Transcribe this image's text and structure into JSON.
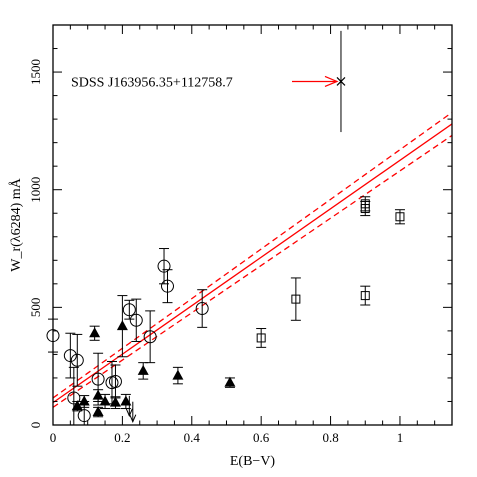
{
  "chart_data": {
    "type": "scatter",
    "xlabel": "E(B−V)",
    "ylabel": "W_r(λ6284) mÅ",
    "xlim": [
      0,
      1.15
    ],
    "ylim": [
      0,
      1700
    ],
    "x_ticks": [
      "0",
      "0.2",
      "0.4",
      "0.6",
      "0.8",
      "1"
    ],
    "x_tick_values": [
      0,
      0.2,
      0.4,
      0.6,
      0.8,
      1.0
    ],
    "y_ticks": [
      "0",
      "500",
      "1000",
      "1500"
    ],
    "y_tick_values": [
      0,
      500,
      1000,
      1500
    ],
    "grid": false,
    "line_color": "#ff0000",
    "marker_color": "#000000",
    "fit": {
      "intercept": 95,
      "slope": 1030,
      "band": [
        {
          "name": "upper",
          "intercept": 115,
          "slope": 1055,
          "style": "dashed"
        },
        {
          "name": "lower",
          "intercept": 75,
          "slope": 1005,
          "style": "dashed"
        }
      ]
    },
    "series": [
      {
        "marker": "circle",
        "points": [
          {
            "x": 0.0,
            "y": 380,
            "err": 70
          },
          {
            "x": 0.05,
            "y": 295,
            "err": 95
          },
          {
            "x": 0.06,
            "y": 115,
            "err": 130
          },
          {
            "x": 0.07,
            "y": 275,
            "err": 110
          },
          {
            "x": 0.09,
            "y": 40,
            "err": 60
          },
          {
            "x": 0.13,
            "y": 195,
            "err": 110
          },
          {
            "x": 0.17,
            "y": 180,
            "err": 90
          },
          {
            "x": 0.18,
            "y": 185,
            "err": 70
          },
          {
            "x": 0.22,
            "y": 490,
            "err": 40
          },
          {
            "x": 0.24,
            "y": 445,
            "err": 90
          },
          {
            "x": 0.28,
            "y": 375,
            "err": 110
          },
          {
            "x": 0.32,
            "y": 675,
            "err": 75
          },
          {
            "x": 0.33,
            "y": 590,
            "err": 70
          },
          {
            "x": 0.43,
            "y": 495,
            "err": 80
          }
        ]
      },
      {
        "marker": "triangle",
        "points": [
          {
            "x": 0.07,
            "y": 80,
            "err": 20
          },
          {
            "x": 0.09,
            "y": 100,
            "err": 25
          },
          {
            "x": 0.12,
            "y": 390,
            "err": 30
          },
          {
            "x": 0.13,
            "y": 55,
            "err": 20
          },
          {
            "x": 0.13,
            "y": 125,
            "err": 25
          },
          {
            "x": 0.15,
            "y": 100,
            "err": 30
          },
          {
            "x": 0.18,
            "y": 95,
            "err": 25
          },
          {
            "x": 0.2,
            "y": 420,
            "err": 130
          },
          {
            "x": 0.21,
            "y": 100,
            "err": 30
          },
          {
            "x": 0.26,
            "y": 230,
            "err": 35
          },
          {
            "x": 0.36,
            "y": 210,
            "err": 35
          },
          {
            "x": 0.51,
            "y": 180,
            "err": 20
          }
        ]
      },
      {
        "marker": "square",
        "points": [
          {
            "x": 0.6,
            "y": 370,
            "err": 40
          },
          {
            "x": 0.7,
            "y": 535,
            "err": 90
          },
          {
            "x": 0.9,
            "y": 550,
            "err": 40
          },
          {
            "x": 0.9,
            "y": 920,
            "err": 30
          },
          {
            "x": 0.9,
            "y": 940,
            "err": 30
          },
          {
            "x": 1.0,
            "y": 885,
            "err": 30
          }
        ]
      },
      {
        "marker": "cross",
        "points": [
          {
            "x": 0.83,
            "y": 1460,
            "err": 215
          }
        ]
      }
    ],
    "upper_limits": [
      {
        "x": 0.22,
        "y": 90
      },
      {
        "x": 0.23,
        "y": 65
      }
    ],
    "annotations": [
      {
        "text": "SDSS J163956.35+112758.7",
        "points_to_x": 0.83,
        "points_to_y": 1460
      }
    ]
  }
}
